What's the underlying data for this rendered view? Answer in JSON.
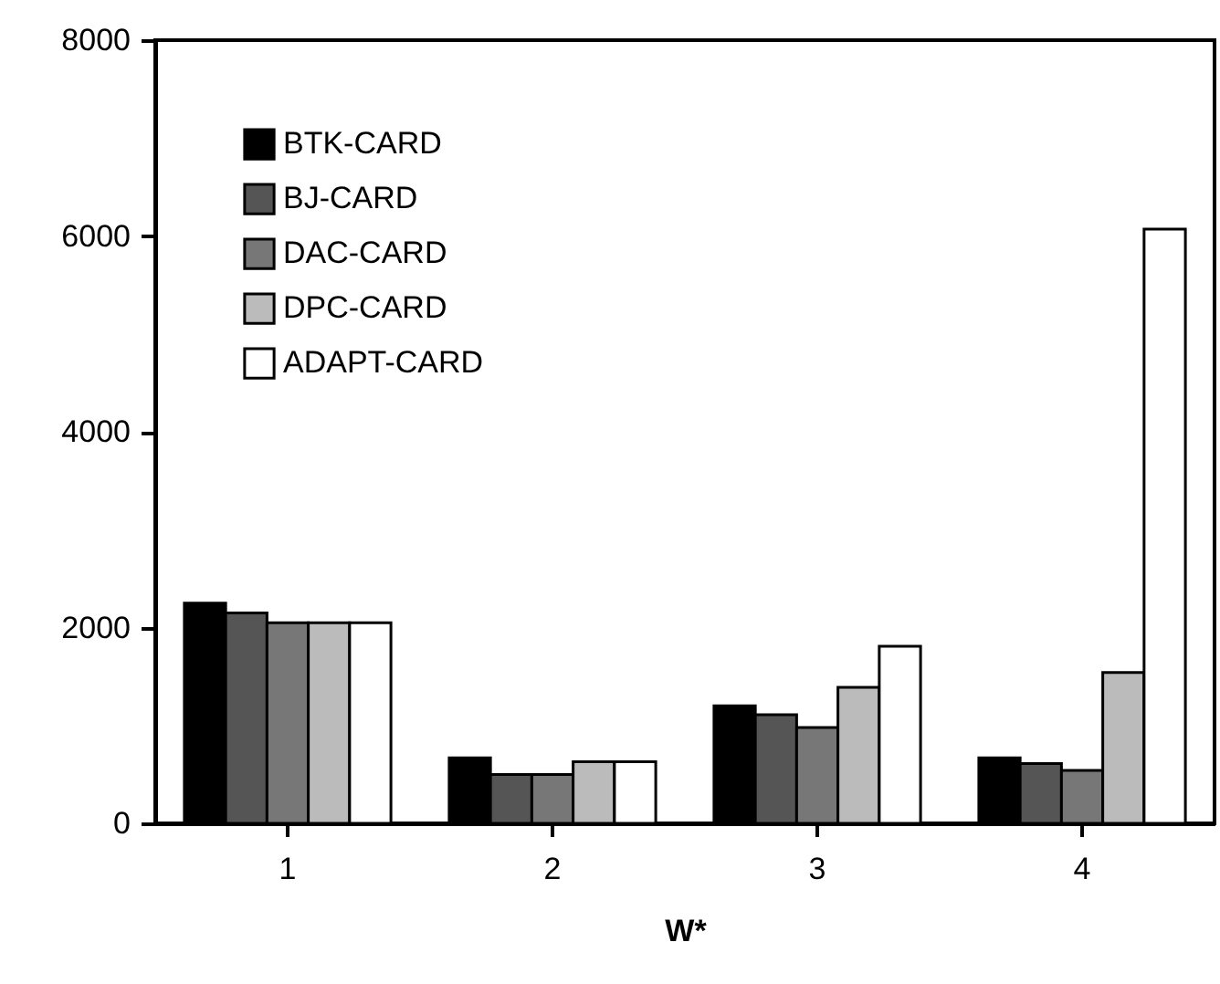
{
  "chart_data": {
    "type": "bar",
    "xlabel": "W*",
    "categories": [
      "1",
      "2",
      "3",
      "4"
    ],
    "series": [
      {
        "name": "BTK-CARD",
        "color": "#000000",
        "values": [
          2250,
          670,
          1200,
          670
        ]
      },
      {
        "name": "BJ-CARD",
        "color": "#555555",
        "values": [
          2150,
          500,
          1110,
          610
        ]
      },
      {
        "name": "DAC-CARD",
        "color": "#777777",
        "values": [
          2050,
          500,
          980,
          540
        ]
      },
      {
        "name": "DPC-CARD",
        "color": "#bbbbbb",
        "values": [
          2050,
          630,
          1390,
          1540
        ]
      },
      {
        "name": "ADAPT-CARD",
        "color": "#ffffff",
        "values": [
          2050,
          630,
          1810,
          6070
        ]
      }
    ],
    "ylim": [
      0,
      8000
    ],
    "yticks": [
      0,
      2000,
      4000,
      6000,
      8000
    ],
    "legend": "top left"
  }
}
